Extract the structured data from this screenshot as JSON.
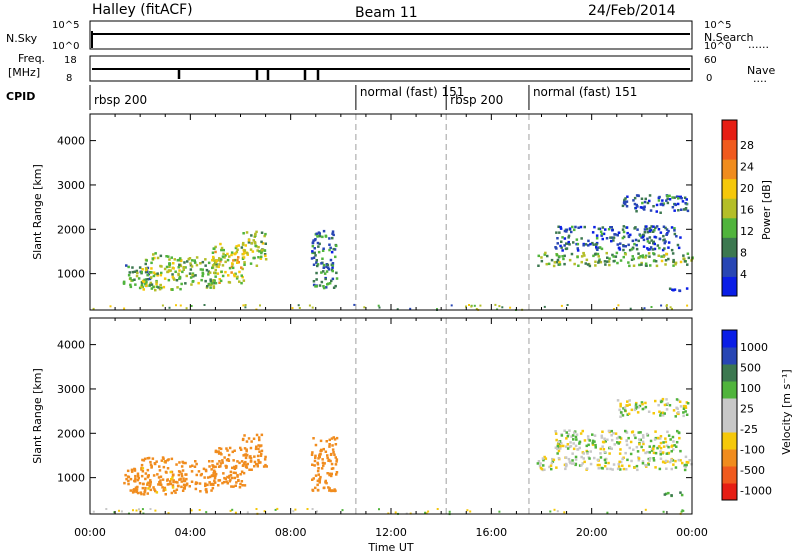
{
  "header": {
    "site": "Halley (fitACF)",
    "beam": "Beam 11",
    "date": "24/Feb/2014"
  },
  "top_panels": {
    "nsky_label": "N.Sky",
    "nsearch_label": "N.Search",
    "freq_label_line1": "Freq.",
    "freq_label_line2": "[MHz]",
    "nave_label": "Nave",
    "cpid_label": "CPID",
    "nsky_ticks": [
      "10^5",
      "10^0"
    ],
    "nsearch_ticks": [
      "10^5",
      "10^0"
    ],
    "freq_ticks": [
      "18",
      "8"
    ],
    "nave_ticks": [
      "60",
      "0"
    ],
    "cpid_modes": [
      {
        "label": "rbsp 200",
        "start": 0.0,
        "end": 10.6
      },
      {
        "label": "normal (fast) 151",
        "start": 10.6,
        "end": 14.2
      },
      {
        "label": "rbsp 200",
        "start": 14.2,
        "end": 17.5
      },
      {
        "label": "normal (fast) 151",
        "start": 17.5,
        "end": 24.0
      }
    ]
  },
  "colors": {
    "power_scale": [
      "#0a1ee6",
      "#2846b4",
      "#3c7850",
      "#50b43c",
      "#b4be28",
      "#f5c80a",
      "#f08c1e",
      "#f05a1e",
      "#e61e14"
    ],
    "velocity_scale": [
      "#e61e14",
      "#f05a1e",
      "#f08c1e",
      "#f5c80a",
      "#c8c8c8",
      "#c8c8c8",
      "#50b43c",
      "#3c7850",
      "#2846b4",
      "#0a1ee6"
    ],
    "ground_scatter": "#c8c8c8",
    "mode_boundary": "#a0a0a0"
  },
  "chart_data": [
    {
      "type": "heatmap",
      "name": "power",
      "ylabel": "Slant Range [km]",
      "xlabel": "Time UT",
      "xlim": [
        0,
        24
      ],
      "ylim": [
        180,
        4600
      ],
      "x_ticks": [
        "00:00",
        "04:00",
        "08:00",
        "12:00",
        "16:00",
        "20:00",
        "00:00"
      ],
      "y_ticks": [
        1000,
        2000,
        3000,
        4000
      ],
      "colorbar": {
        "label": "Power [dB]",
        "ticks": [
          "28",
          "24",
          "20",
          "16",
          "12",
          "8",
          "4"
        ],
        "range": [
          0,
          30
        ]
      },
      "scatter_regions": [
        {
          "t0": 1.3,
          "t1": 2.4,
          "r0": 650,
          "r1": 1250,
          "value": 10
        },
        {
          "t0": 2.0,
          "t1": 3.6,
          "r0": 650,
          "r1": 1500,
          "value": 14
        },
        {
          "t0": 3.5,
          "t1": 5.0,
          "r0": 700,
          "r1": 1400,
          "value": 12
        },
        {
          "t0": 4.8,
          "t1": 6.2,
          "r0": 800,
          "r1": 1700,
          "value": 16
        },
        {
          "t0": 6.0,
          "t1": 7.0,
          "r0": 1200,
          "r1": 2000,
          "value": 14
        },
        {
          "t0": 8.8,
          "t1": 9.8,
          "r0": 700,
          "r1": 2000,
          "value": 8
        },
        {
          "t0": 17.8,
          "t1": 24.0,
          "r0": 1200,
          "r1": 1500,
          "value": 12
        },
        {
          "t0": 18.5,
          "t1": 23.5,
          "r0": 1550,
          "r1": 2100,
          "value": 6
        },
        {
          "t0": 21.0,
          "t1": 23.8,
          "r0": 2400,
          "r1": 2800,
          "value": 6
        },
        {
          "t0": 22.8,
          "t1": 23.8,
          "r0": 600,
          "r1": 700,
          "value": 4
        }
      ]
    },
    {
      "type": "heatmap",
      "name": "velocity",
      "ylabel": "Slant Range [km]",
      "xlabel": "Time UT",
      "xlim": [
        0,
        24
      ],
      "ylim": [
        180,
        4600
      ],
      "x_ticks": [
        "00:00",
        "04:00",
        "08:00",
        "12:00",
        "16:00",
        "20:00",
        "00:00"
      ],
      "y_ticks": [
        1000,
        2000,
        3000,
        4000
      ],
      "colorbar": {
        "label": "Velocity [m s⁻¹]",
        "ticks": [
          "1000",
          "500",
          "100",
          "25",
          "-25",
          "-100",
          "-500",
          "-1000"
        ]
      },
      "scatter_regions": [
        {
          "t0": 1.3,
          "t1": 2.4,
          "r0": 650,
          "r1": 1250,
          "value": -300
        },
        {
          "t0": 2.0,
          "t1": 3.6,
          "r0": 650,
          "r1": 1500,
          "value": -150
        },
        {
          "t0": 3.5,
          "t1": 5.0,
          "r0": 700,
          "r1": 1400,
          "value": -200
        },
        {
          "t0": 4.8,
          "t1": 6.2,
          "r0": 800,
          "r1": 1700,
          "value": -250
        },
        {
          "t0": 6.0,
          "t1": 7.0,
          "r0": 1200,
          "r1": 2000,
          "value": -300
        },
        {
          "t0": 8.8,
          "t1": 9.8,
          "r0": 700,
          "r1": 2000,
          "value": -250
        },
        {
          "t0": 17.8,
          "t1": 24.0,
          "r0": 1200,
          "r1": 1500,
          "value": 0
        },
        {
          "t0": 18.5,
          "t1": 23.5,
          "r0": 1550,
          "r1": 2100,
          "value": 0
        },
        {
          "t0": 21.0,
          "t1": 23.8,
          "r0": 2400,
          "r1": 2800,
          "value": 0
        },
        {
          "t0": 22.8,
          "t1": 23.8,
          "r0": 600,
          "r1": 700,
          "value": 80
        }
      ]
    }
  ]
}
